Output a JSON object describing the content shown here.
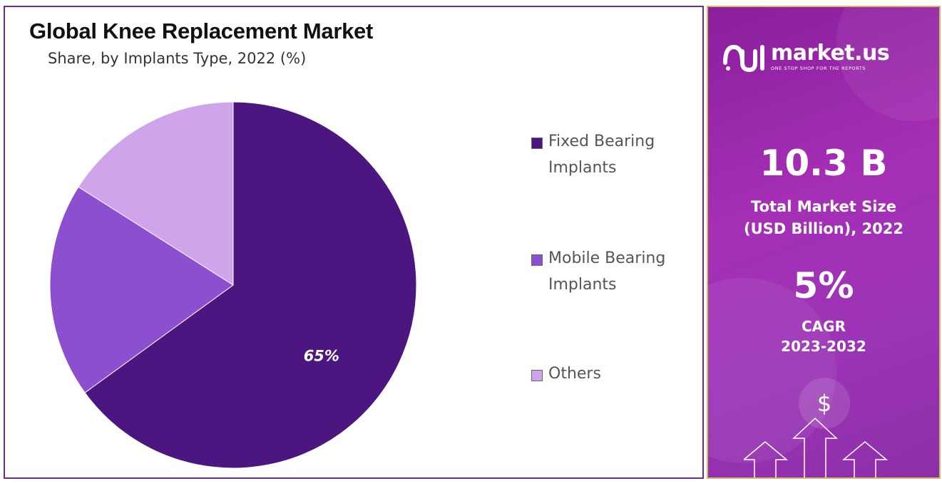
{
  "chart_data": {
    "type": "pie",
    "title": "Global Knee Replacement Market",
    "subtitle": "Share, by Implants Type, 2022 (%)",
    "categories": [
      "Fixed Bearing Implants",
      "Mobile Bearing Implants",
      "Others"
    ],
    "legend_labels": [
      "Fixed Bearing\nImplants",
      "Mobile Bearing\nImplants",
      "Others"
    ],
    "values": [
      65,
      19,
      16
    ],
    "colors": [
      "#4b1680",
      "#8b4fcf",
      "#d0a4ea"
    ],
    "data_labels": [
      "65%",
      "",
      ""
    ],
    "legend_position": "right"
  },
  "side_panel": {
    "logo_text": "market.us",
    "logo_tagline": "ONE STOP SHOP FOR THE REPORTS",
    "market_size_value": "10.3 B",
    "market_size_label": "Total Market Size\n (USD Billion), 2022",
    "cagr_value": "5%",
    "cagr_label": "CAGR\n2023-2032",
    "currency_symbol": "$"
  }
}
